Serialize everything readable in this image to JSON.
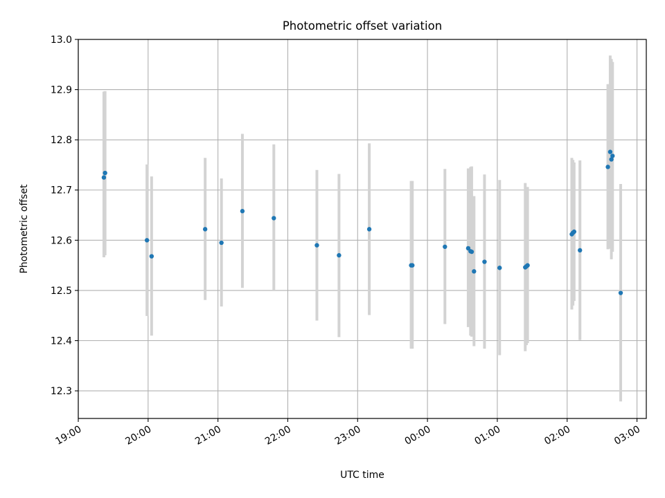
{
  "chart_data": {
    "type": "scatter",
    "title": "Photometric offset variation",
    "xlabel": "UTC time",
    "ylabel": "Photometric offset",
    "x_axis": "time",
    "xlim": [
      "2023-01-01T19:00",
      "2023-01-02T03:08"
    ],
    "ylim": [
      12.245,
      13.0
    ],
    "x_ticks": [
      {
        "t": "2023-01-01T19:00",
        "label": "19:00"
      },
      {
        "t": "2023-01-01T20:00",
        "label": "20:00"
      },
      {
        "t": "2023-01-01T21:00",
        "label": "21:00"
      },
      {
        "t": "2023-01-01T22:00",
        "label": "22:00"
      },
      {
        "t": "2023-01-01T23:00",
        "label": "23:00"
      },
      {
        "t": "2023-01-02T00:00",
        "label": "00:00"
      },
      {
        "t": "2023-01-02T01:00",
        "label": "01:00"
      },
      {
        "t": "2023-01-02T02:00",
        "label": "02:00"
      },
      {
        "t": "2023-01-02T03:00",
        "label": "03:00"
      }
    ],
    "y_ticks": [
      {
        "v": 12.3,
        "label": "12.3"
      },
      {
        "v": 12.4,
        "label": "12.4"
      },
      {
        "v": 12.5,
        "label": "12.5"
      },
      {
        "v": 12.6,
        "label": "12.6"
      },
      {
        "v": 12.7,
        "label": "12.7"
      },
      {
        "v": 12.8,
        "label": "12.8"
      },
      {
        "v": 12.9,
        "label": "12.9"
      },
      {
        "v": 13.0,
        "label": "13.0"
      }
    ],
    "grid": true,
    "point_color": "#1f77b4",
    "errorbar_color": "#d3d3d3",
    "points": [
      {
        "t": "2023-01-01T19:22",
        "y": 12.725,
        "lo": 12.566,
        "hi": 12.896
      },
      {
        "t": "2023-01-01T19:23",
        "y": 12.734,
        "lo": 12.57,
        "hi": 12.897
      },
      {
        "t": "2023-01-01T19:59",
        "y": 12.6,
        "lo": 12.449,
        "hi": 12.751
      },
      {
        "t": "2023-01-01T20:03",
        "y": 12.568,
        "lo": 12.41,
        "hi": 12.727
      },
      {
        "t": "2023-01-01T20:49",
        "y": 12.622,
        "lo": 12.481,
        "hi": 12.764
      },
      {
        "t": "2023-01-01T21:03",
        "y": 12.595,
        "lo": 12.468,
        "hi": 12.723
      },
      {
        "t": "2023-01-01T21:21",
        "y": 12.658,
        "lo": 12.505,
        "hi": 12.812
      },
      {
        "t": "2023-01-01T21:48",
        "y": 12.644,
        "lo": 12.5,
        "hi": 12.791
      },
      {
        "t": "2023-01-01T22:25",
        "y": 12.59,
        "lo": 12.44,
        "hi": 12.74
      },
      {
        "t": "2023-01-01T22:44",
        "y": 12.57,
        "lo": 12.407,
        "hi": 12.732
      },
      {
        "t": "2023-01-01T23:10",
        "y": 12.622,
        "lo": 12.451,
        "hi": 12.793
      },
      {
        "t": "2023-01-01T23:46",
        "y": 12.55,
        "lo": 12.384,
        "hi": 12.718
      },
      {
        "t": "2023-01-01T23:47",
        "y": 12.55,
        "lo": 12.384,
        "hi": 12.718
      },
      {
        "t": "2023-01-02T00:15",
        "y": 12.587,
        "lo": 12.433,
        "hi": 12.742
      },
      {
        "t": "2023-01-02T00:35",
        "y": 12.584,
        "lo": 12.427,
        "hi": 12.743
      },
      {
        "t": "2023-01-02T00:37",
        "y": 12.578,
        "lo": 12.41,
        "hi": 12.746
      },
      {
        "t": "2023-01-02T00:38",
        "y": 12.577,
        "lo": 12.408,
        "hi": 12.747
      },
      {
        "t": "2023-01-02T00:40",
        "y": 12.538,
        "lo": 12.389,
        "hi": 12.688
      },
      {
        "t": "2023-01-02T00:49",
        "y": 12.557,
        "lo": 12.384,
        "hi": 12.731
      },
      {
        "t": "2023-01-02T01:02",
        "y": 12.545,
        "lo": 12.371,
        "hi": 12.72
      },
      {
        "t": "2023-01-02T01:24",
        "y": 12.546,
        "lo": 12.379,
        "hi": 12.714
      },
      {
        "t": "2023-01-02T01:25",
        "y": 12.548,
        "lo": 12.391,
        "hi": 12.706
      },
      {
        "t": "2023-01-02T01:26",
        "y": 12.55,
        "lo": 12.395,
        "hi": 12.706
      },
      {
        "t": "2023-01-02T02:04",
        "y": 12.612,
        "lo": 12.462,
        "hi": 12.764
      },
      {
        "t": "2023-01-02T02:05",
        "y": 12.615,
        "lo": 12.47,
        "hi": 12.76
      },
      {
        "t": "2023-01-02T02:06",
        "y": 12.617,
        "lo": 12.479,
        "hi": 12.755
      },
      {
        "t": "2023-01-02T02:11",
        "y": 12.58,
        "lo": 12.401,
        "hi": 12.759
      },
      {
        "t": "2023-01-02T02:35",
        "y": 12.746,
        "lo": 12.582,
        "hi": 12.911
      },
      {
        "t": "2023-01-02T02:37",
        "y": 12.776,
        "lo": 12.583,
        "hi": 12.968
      },
      {
        "t": "2023-01-02T02:38",
        "y": 12.761,
        "lo": 12.562,
        "hi": 12.961
      },
      {
        "t": "2023-01-02T02:39",
        "y": 12.768,
        "lo": 12.577,
        "hi": 12.955
      },
      {
        "t": "2023-01-02T02:46",
        "y": 12.495,
        "lo": 12.279,
        "hi": 12.712
      }
    ]
  }
}
